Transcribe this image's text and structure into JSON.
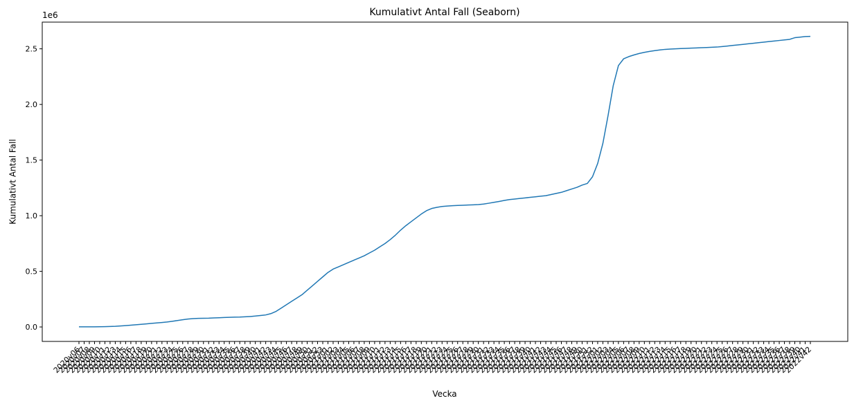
{
  "chart_data": {
    "type": "line",
    "title": "Kumulativt Antal Fall (Seaborn)",
    "x_label": "Vecka",
    "y_label": "Kumulativt Antal Fall",
    "y_offset_label": "1e6",
    "color": "#1f77b4",
    "categories": [
      "2020v06",
      "2020v07",
      "2020v08",
      "2020v09",
      "2020v10",
      "2020v11",
      "2020v12",
      "2020v13",
      "2020v14",
      "2020v15",
      "2020v16",
      "2020v17",
      "2020v18",
      "2020v19",
      "2020v20",
      "2020v21",
      "2020v22",
      "2020v23",
      "2020v24",
      "2020v25",
      "2020v26",
      "2020v27",
      "2020v28",
      "2020v29",
      "2020v30",
      "2020v31",
      "2020v32",
      "2020v33",
      "2020v34",
      "2020v35",
      "2020v36",
      "2020v37",
      "2020v38",
      "2020v39",
      "2020v40",
      "2020v41",
      "2020v42",
      "2020v43",
      "2020v44",
      "2020v45",
      "2020v46",
      "2020v47",
      "2020v48",
      "2020v49",
      "2020v50",
      "2020v51",
      "2020v52",
      "2020v53",
      "2021v01",
      "2021v02",
      "2021v03",
      "2021v04",
      "2021v05",
      "2021v06",
      "2021v07",
      "2021v08",
      "2021v09",
      "2021v10",
      "2021v11",
      "2021v12",
      "2021v13",
      "2021v14",
      "2021v15",
      "2021v16",
      "2021v17",
      "2021v18",
      "2021v19",
      "2021v20",
      "2021v21",
      "2021v22",
      "2021v23",
      "2021v24",
      "2021v25",
      "2021v26",
      "2021v27",
      "2021v28",
      "2021v29",
      "2021v30",
      "2021v31",
      "2021v32",
      "2021v33",
      "2021v34",
      "2021v35",
      "2021v36",
      "2021v37",
      "2021v38",
      "2021v39",
      "2021v40",
      "2021v41",
      "2021v42",
      "2021v43",
      "2021v44",
      "2021v45",
      "2021v46",
      "2021v47",
      "2021v48",
      "2021v49",
      "2021v50",
      "2021v51",
      "2021v52",
      "2022v01",
      "2022v02",
      "2022v03",
      "2022v04",
      "2022v05",
      "2022v06",
      "2022v07",
      "2022v08",
      "2022v09",
      "2022v10",
      "2022v11",
      "2022v12",
      "2022v13",
      "2022v14",
      "2022v15",
      "2022v16",
      "2022v17",
      "2022v18",
      "2022v19",
      "2022v20",
      "2022v21",
      "2022v22",
      "2022v23",
      "2022v24",
      "2022v25",
      "2022v26",
      "2022v27",
      "2022v28",
      "2022v29",
      "2022v30",
      "2022v31",
      "2022v32",
      "2022v33",
      "2022v34",
      "2022v35",
      "2022v36",
      "2022v37",
      "2022v38",
      "2022v39",
      "2022v40",
      "2022v41",
      "2022v42"
    ],
    "values": [
      0.001,
      0.001,
      0.001,
      0.001,
      0.002,
      0.003,
      0.004,
      0.006,
      0.009,
      0.012,
      0.016,
      0.02,
      0.024,
      0.028,
      0.032,
      0.036,
      0.04,
      0.045,
      0.051,
      0.058,
      0.065,
      0.071,
      0.075,
      0.077,
      0.078,
      0.079,
      0.081,
      0.083,
      0.085,
      0.087,
      0.088,
      0.089,
      0.091,
      0.094,
      0.098,
      0.103,
      0.108,
      0.12,
      0.14,
      0.17,
      0.2,
      0.23,
      0.26,
      0.29,
      0.33,
      0.37,
      0.41,
      0.45,
      0.49,
      0.52,
      0.54,
      0.56,
      0.58,
      0.6,
      0.62,
      0.64,
      0.665,
      0.69,
      0.72,
      0.75,
      0.785,
      0.825,
      0.87,
      0.91,
      0.945,
      0.98,
      1.015,
      1.045,
      1.065,
      1.075,
      1.083,
      1.087,
      1.09,
      1.092,
      1.094,
      1.096,
      1.098,
      1.1,
      1.105,
      1.112,
      1.12,
      1.128,
      1.137,
      1.145,
      1.15,
      1.155,
      1.16,
      1.165,
      1.17,
      1.175,
      1.18,
      1.19,
      1.2,
      1.21,
      1.225,
      1.24,
      1.255,
      1.275,
      1.29,
      1.35,
      1.47,
      1.65,
      1.9,
      2.17,
      2.35,
      2.41,
      2.43,
      2.445,
      2.458,
      2.468,
      2.477,
      2.484,
      2.49,
      2.495,
      2.498,
      2.5,
      2.502,
      2.504,
      2.506,
      2.508,
      2.51,
      2.512,
      2.514,
      2.516,
      2.52,
      2.525,
      2.53,
      2.535,
      2.54,
      2.545,
      2.55,
      2.555,
      2.56,
      2.565,
      2.57,
      2.575,
      2.58,
      2.585,
      2.6,
      2.605,
      2.61,
      2.612
    ],
    "ylim": [
      -0.13,
      2.74
    ],
    "yticks": [
      {
        "value": 0,
        "label": "0.0"
      },
      {
        "value": 0.5,
        "label": "0.5"
      },
      {
        "value": 1,
        "label": "1.0"
      },
      {
        "value": 1.5,
        "label": "1.5"
      },
      {
        "value": 2,
        "label": "2.0"
      },
      {
        "value": 2.5,
        "label": "2.5"
      }
    ]
  }
}
